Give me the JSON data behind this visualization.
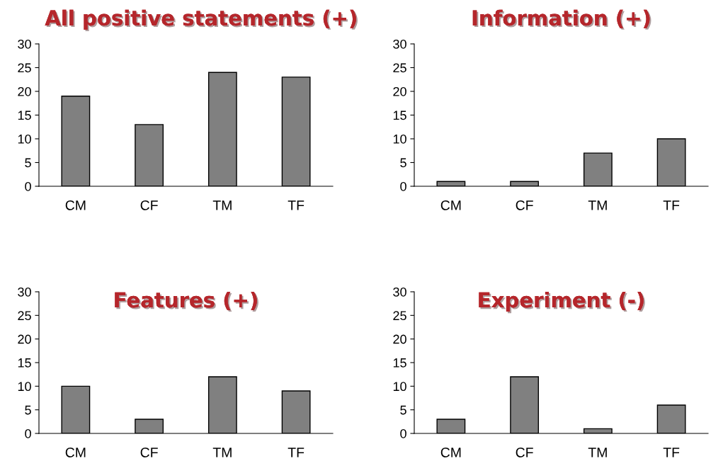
{
  "chart_data": [
    {
      "type": "bar",
      "title": "All positive statements (+)",
      "categories": [
        "CM",
        "CF",
        "TM",
        "TF"
      ],
      "values": [
        19,
        13,
        24,
        23
      ],
      "color": "#808080",
      "ylim": [
        0,
        30
      ],
      "yticks": [
        0,
        5,
        10,
        15,
        20,
        25,
        30
      ],
      "grid": false,
      "legend": false
    },
    {
      "type": "bar",
      "title": "Information (+)",
      "categories": [
        "CM",
        "CF",
        "TM",
        "TF"
      ],
      "values": [
        1,
        1,
        7,
        10
      ],
      "color": "#808080",
      "ylim": [
        0,
        30
      ],
      "yticks": [
        0,
        5,
        10,
        15,
        20,
        25,
        30
      ],
      "grid": false,
      "legend": false
    },
    {
      "type": "bar",
      "title": "Features (+)",
      "categories": [
        "CM",
        "CF",
        "TM",
        "TF"
      ],
      "values": [
        10,
        3,
        12,
        9
      ],
      "color": "#808080",
      "ylim": [
        0,
        30
      ],
      "yticks": [
        0,
        5,
        10,
        15,
        20,
        25,
        30
      ],
      "grid": false,
      "legend": false
    },
    {
      "type": "bar",
      "title": "Experiment (-)",
      "categories": [
        "CM",
        "CF",
        "TM",
        "TF"
      ],
      "values": [
        3,
        12,
        1,
        6
      ],
      "color": "#808080",
      "ylim": [
        0,
        30
      ],
      "yticks": [
        0,
        5,
        10,
        15,
        20,
        25,
        30
      ],
      "grid": false,
      "legend": false
    }
  ]
}
